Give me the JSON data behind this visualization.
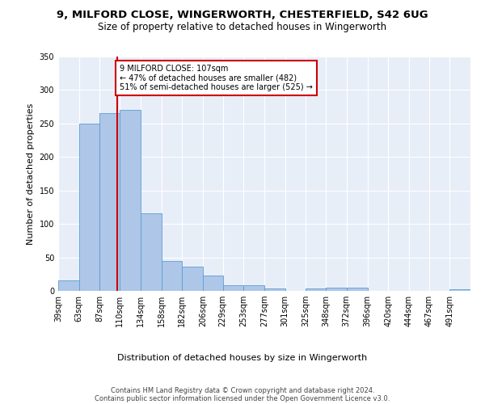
{
  "title_line1": "9, MILFORD CLOSE, WINGERWORTH, CHESTERFIELD, S42 6UG",
  "title_line2": "Size of property relative to detached houses in Wingerworth",
  "xlabel": "Distribution of detached houses by size in Wingerworth",
  "ylabel": "Number of detached properties",
  "footer_line1": "Contains HM Land Registry data © Crown copyright and database right 2024.",
  "footer_line2": "Contains public sector information licensed under the Open Government Licence v3.0.",
  "annotation_line1": "9 MILFORD CLOSE: 107sqm",
  "annotation_line2": "← 47% of detached houses are smaller (482)",
  "annotation_line3": "51% of semi-detached houses are larger (525) →",
  "property_size_sqm": 107,
  "bar_edges": [
    39,
    63,
    87,
    110,
    134,
    158,
    182,
    206,
    229,
    253,
    277,
    301,
    325,
    348,
    372,
    396,
    420,
    444,
    467,
    491,
    515
  ],
  "bar_heights": [
    16,
    250,
    265,
    270,
    116,
    45,
    36,
    23,
    9,
    9,
    4,
    0,
    4,
    5,
    5,
    0,
    0,
    0,
    0,
    3
  ],
  "bar_color": "#aec6e8",
  "bar_edge_color": "#5a9fd4",
  "vline_color": "#cc0000",
  "vline_x": 107,
  "annotation_box_color": "#cc0000",
  "ylim": [
    0,
    350
  ],
  "yticks": [
    0,
    50,
    100,
    150,
    200,
    250,
    300,
    350
  ],
  "background_color": "#e8eef8",
  "plot_bg_color": "#e8eef8",
  "grid_color": "#ffffff",
  "title_fontsize": 9.5,
  "subtitle_fontsize": 8.5,
  "axis_label_fontsize": 8,
  "tick_fontsize": 7,
  "footer_fontsize": 6,
  "annotation_fontsize": 7
}
